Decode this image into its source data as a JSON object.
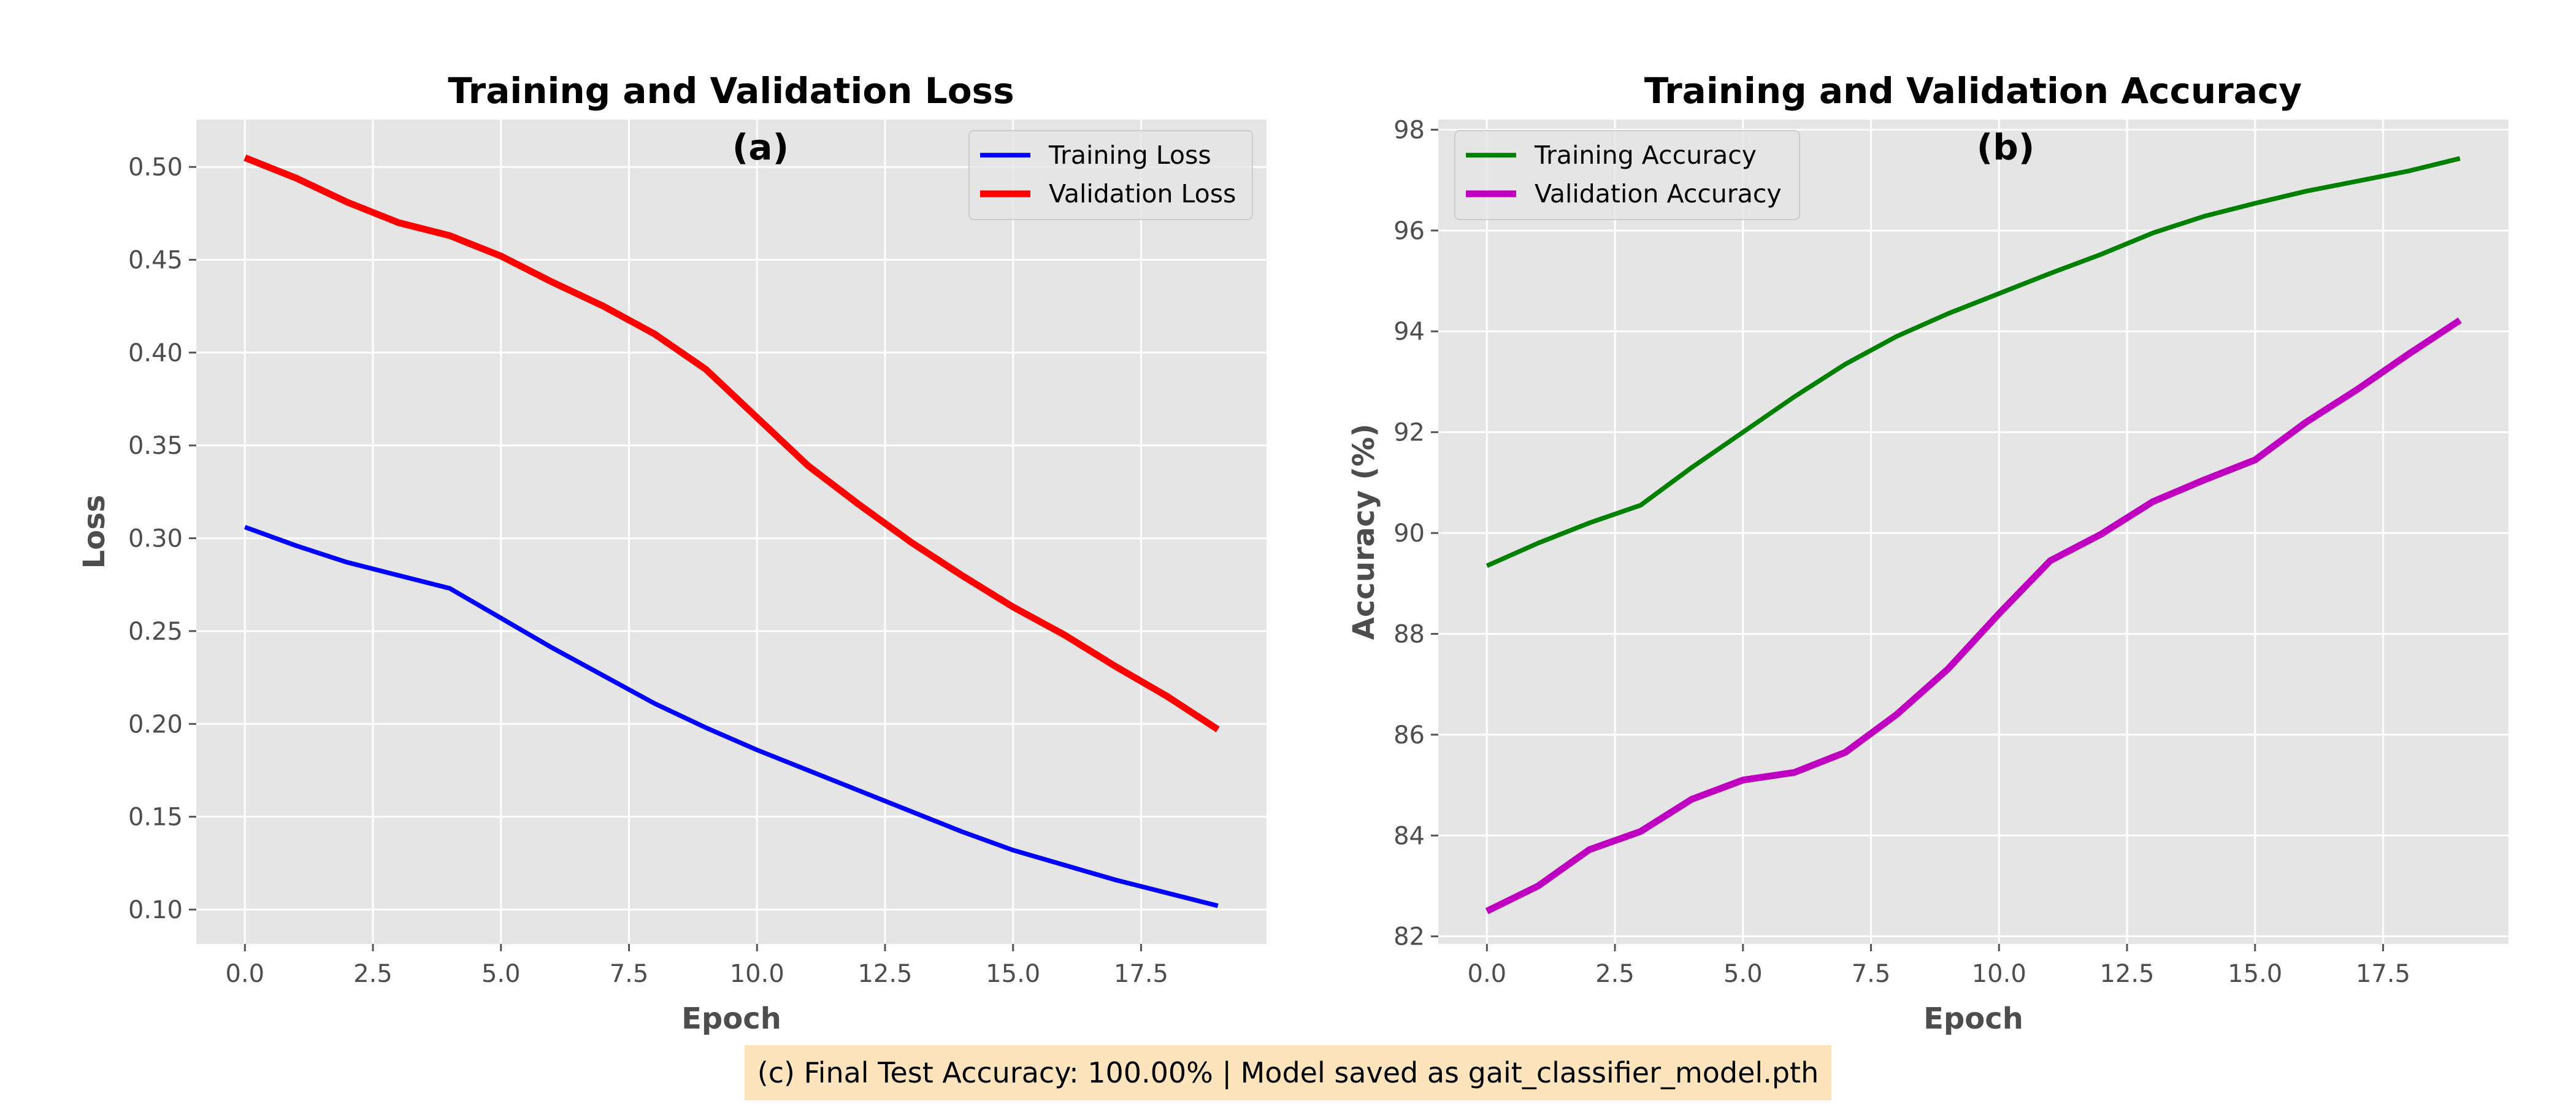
{
  "chart_data": [
    {
      "type": "line",
      "title": "Training and Validation Loss",
      "panel_label": "(a)",
      "xlabel": "Epoch",
      "ylabel": "Loss",
      "xlim": [
        -0.95,
        19.95
      ],
      "ylim": [
        0.0815,
        0.5255
      ],
      "xticks": [
        0.0,
        2.5,
        5.0,
        7.5,
        10.0,
        12.5,
        15.0,
        17.5
      ],
      "xtick_labels": [
        "0.0",
        "2.5",
        "5.0",
        "7.5",
        "10.0",
        "12.5",
        "15.0",
        "17.5"
      ],
      "yticks": [
        0.1,
        0.15,
        0.2,
        0.25,
        0.3,
        0.35,
        0.4,
        0.45,
        0.5
      ],
      "ytick_labels": [
        "0.10",
        "0.15",
        "0.20",
        "0.25",
        "0.30",
        "0.35",
        "0.40",
        "0.45",
        "0.50"
      ],
      "grid": true,
      "legend_position": "upper right",
      "x": [
        0,
        1,
        2,
        3,
        4,
        5,
        6,
        7,
        8,
        9,
        10,
        11,
        12,
        13,
        14,
        15,
        16,
        17,
        18,
        19
      ],
      "series": [
        {
          "name": "Training Loss",
          "color": "#0000ff",
          "values": [
            0.306,
            0.296,
            0.287,
            0.28,
            0.273,
            0.257,
            0.241,
            0.226,
            0.211,
            0.198,
            0.186,
            0.175,
            0.164,
            0.153,
            0.142,
            0.132,
            0.124,
            0.116,
            0.109,
            0.102
          ]
        },
        {
          "name": "Validation Loss",
          "color": "#ff0000",
          "values": [
            0.505,
            0.494,
            0.481,
            0.47,
            0.463,
            0.452,
            0.438,
            0.425,
            0.41,
            0.391,
            0.365,
            0.339,
            0.318,
            0.298,
            0.28,
            0.263,
            0.248,
            0.231,
            0.215,
            0.197
          ]
        }
      ]
    },
    {
      "type": "line",
      "title": "Training and Validation Accuracy",
      "panel_label": "(b)",
      "xlabel": "Epoch",
      "ylabel": "Accuracy (%)",
      "xlim": [
        -0.95,
        19.95
      ],
      "ylim": [
        81.85,
        98.2
      ],
      "xticks": [
        0.0,
        2.5,
        5.0,
        7.5,
        10.0,
        12.5,
        15.0,
        17.5
      ],
      "xtick_labels": [
        "0.0",
        "2.5",
        "5.0",
        "7.5",
        "10.0",
        "12.5",
        "15.0",
        "17.5"
      ],
      "yticks": [
        82,
        84,
        86,
        88,
        90,
        92,
        94,
        96,
        98
      ],
      "ytick_labels": [
        "82",
        "84",
        "86",
        "88",
        "90",
        "92",
        "94",
        "96",
        "98"
      ],
      "grid": true,
      "legend_position": "upper left",
      "x": [
        0,
        1,
        2,
        3,
        4,
        5,
        6,
        7,
        8,
        9,
        10,
        11,
        12,
        13,
        14,
        15,
        16,
        17,
        18,
        19
      ],
      "series": [
        {
          "name": "Training Accuracy",
          "color": "#008000",
          "values": [
            89.35,
            89.8,
            90.2,
            90.55,
            91.3,
            92.0,
            92.7,
            93.35,
            93.9,
            94.35,
            94.75,
            95.15,
            95.53,
            95.95,
            96.28,
            96.54,
            96.78,
            96.98,
            97.18,
            97.43
          ]
        },
        {
          "name": "Validation Accuracy",
          "color": "#c000c0",
          "values": [
            82.5,
            83.0,
            83.72,
            84.08,
            84.72,
            85.1,
            85.25,
            85.65,
            86.4,
            87.3,
            88.4,
            89.45,
            89.98,
            90.62,
            91.05,
            91.45,
            92.2,
            92.85,
            93.55,
            94.22
          ]
        }
      ]
    }
  ],
  "footer": {
    "text": "(c) Final Test Accuracy: 100.00% | Model saved as gait_classifier_model.pth"
  }
}
